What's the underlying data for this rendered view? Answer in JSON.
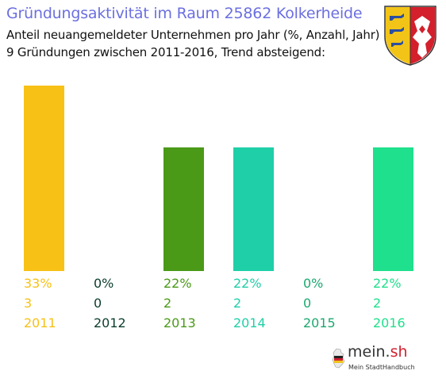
{
  "title": "Gründungsaktivität im Raum 25862 Kolkerheide",
  "subtitle_line1": "Anteil neuangemeldeter Unternehmen pro Jahr (%, Anzahl, Jahr)",
  "subtitle_line2": "9 Gründungen zwischen 2011-2016, Trend absteigend:",
  "logo": {
    "text_main": "mein.",
    "text_accent": "sh",
    "tagline": "Mein StadtHandbuch"
  },
  "chart_data": {
    "type": "bar",
    "title": "Gründungsaktivität im Raum 25862 Kolkerheide",
    "categories": [
      "2011",
      "2012",
      "2013",
      "2014",
      "2015",
      "2016"
    ],
    "values": [
      3,
      0,
      2,
      2,
      0,
      2
    ],
    "percent_labels": [
      "33%",
      "0%",
      "22%",
      "22%",
      "0%",
      "22%"
    ],
    "count_labels": [
      "3",
      "0",
      "2",
      "2",
      "0",
      "2"
    ],
    "colors": [
      "#f7c116",
      "#0b3d2c",
      "#4a9a18",
      "#1fcfa8",
      "#1ca870",
      "#1fe08c"
    ],
    "ylim": [
      0,
      3
    ]
  }
}
